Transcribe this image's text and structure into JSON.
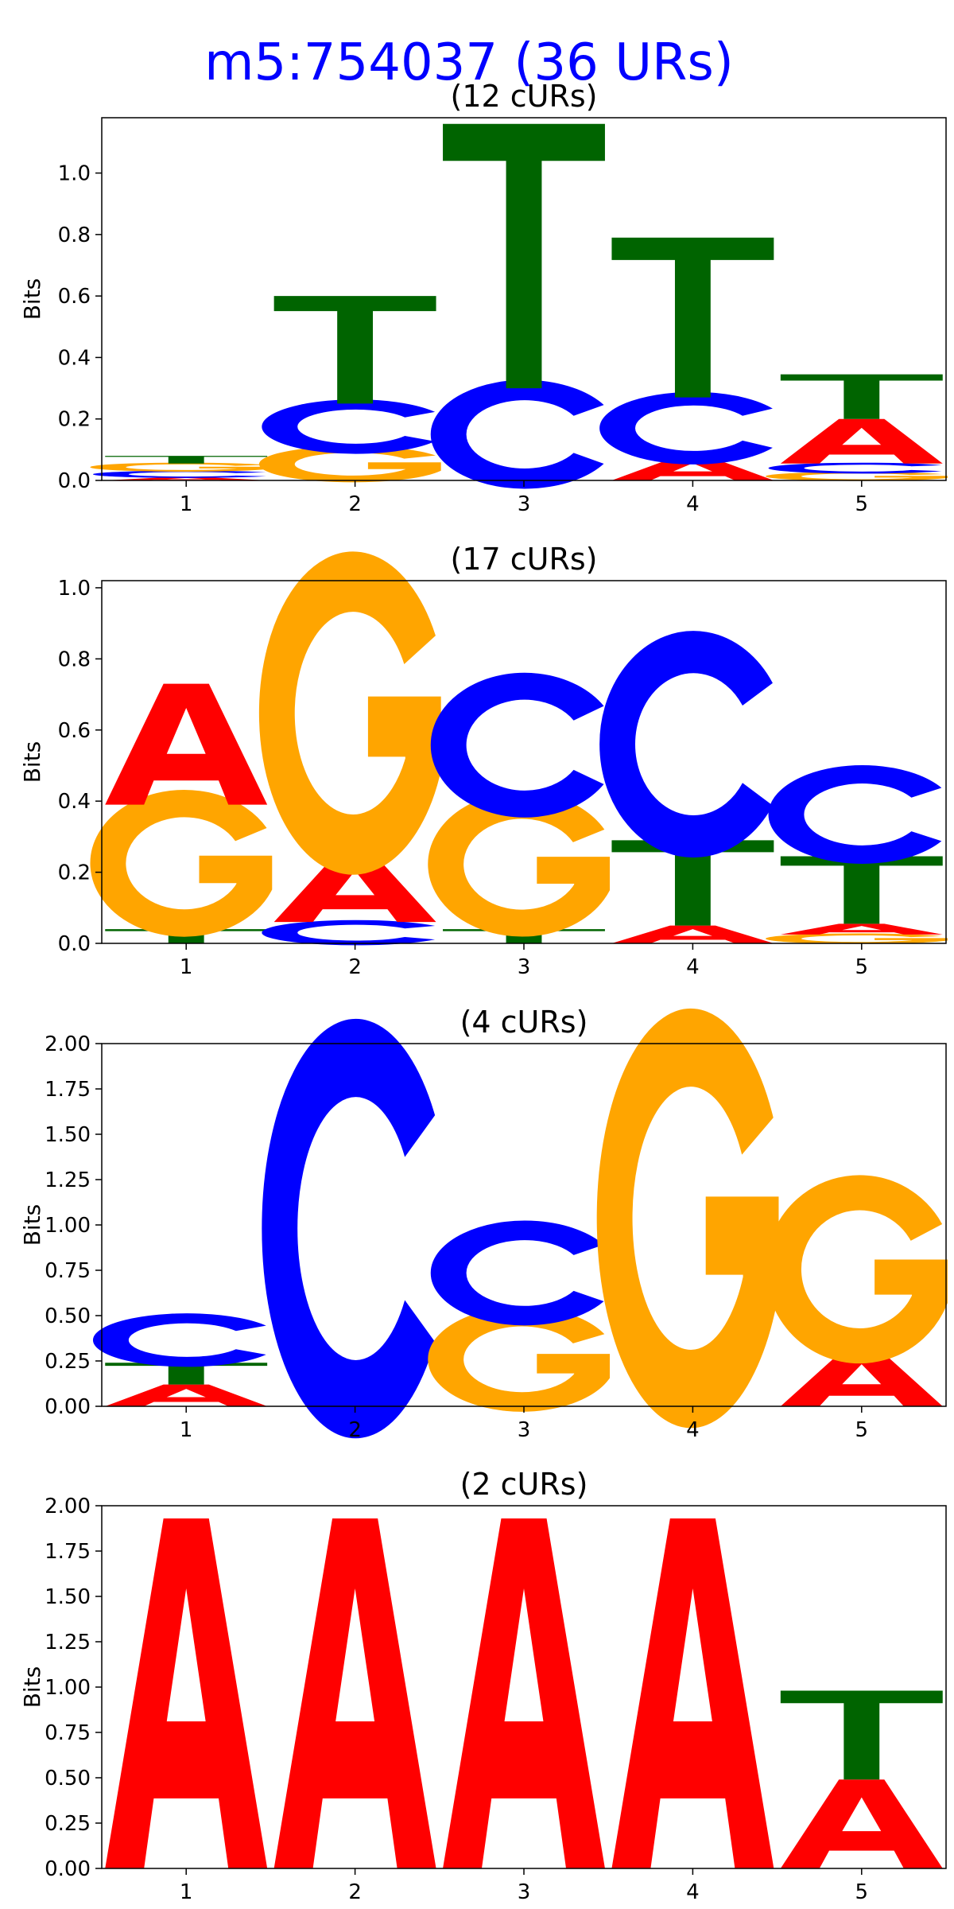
{
  "figure": {
    "title": "m5:754037 (36 URs)",
    "title_color": "#0000ff"
  },
  "letter_colors": {
    "A": "#ff0000",
    "C": "#0000ff",
    "G": "#ffa500",
    "T": "#006400"
  },
  "chart_data": [
    {
      "type": "sequence_logo",
      "title": "(12 cURs)",
      "ylabel": "Bits",
      "ylim": [
        0,
        1.18
      ],
      "yticks": [
        0.0,
        0.2,
        0.4,
        0.6,
        0.8,
        1.0
      ],
      "ytick_labels": [
        "0.0",
        "0.2",
        "0.4",
        "0.6",
        "0.8",
        "1.0"
      ],
      "positions": [
        1,
        2,
        3,
        4,
        5
      ],
      "stacks": [
        [
          {
            "letter": "A",
            "height": 0.01
          },
          {
            "letter": "C",
            "height": 0.02
          },
          {
            "letter": "G",
            "height": 0.025
          },
          {
            "letter": "T",
            "height": 0.025
          }
        ],
        [
          {
            "letter": "A",
            "height": 0.0
          },
          {
            "letter": "G",
            "height": 0.1
          },
          {
            "letter": "C",
            "height": 0.15
          },
          {
            "letter": "T",
            "height": 0.35
          }
        ],
        [
          {
            "letter": "A",
            "height": 0.0
          },
          {
            "letter": "G",
            "height": 0.0
          },
          {
            "letter": "C",
            "height": 0.3
          },
          {
            "letter": "T",
            "height": 0.86
          }
        ],
        [
          {
            "letter": "G",
            "height": 0.0
          },
          {
            "letter": "A",
            "height": 0.07
          },
          {
            "letter": "C",
            "height": 0.2
          },
          {
            "letter": "T",
            "height": 0.52
          }
        ],
        [
          {
            "letter": "G",
            "height": 0.025
          },
          {
            "letter": "C",
            "height": 0.03
          },
          {
            "letter": "A",
            "height": 0.145
          },
          {
            "letter": "T",
            "height": 0.145
          }
        ]
      ]
    },
    {
      "type": "sequence_logo",
      "title": "(17 cURs)",
      "ylabel": "Bits",
      "ylim": [
        0,
        1.02
      ],
      "yticks": [
        0.0,
        0.2,
        0.4,
        0.6,
        0.8,
        1.0
      ],
      "ytick_labels": [
        "0.0",
        "0.2",
        "0.4",
        "0.6",
        "0.8",
        "1.0"
      ],
      "positions": [
        1,
        2,
        3,
        4,
        5
      ],
      "stacks": [
        [
          {
            "letter": "C",
            "height": 0.0
          },
          {
            "letter": "T",
            "height": 0.04
          },
          {
            "letter": "G",
            "height": 0.35
          },
          {
            "letter": "A",
            "height": 0.34
          }
        ],
        [
          {
            "letter": "T",
            "height": 0.0
          },
          {
            "letter": "C",
            "height": 0.06
          },
          {
            "letter": "A",
            "height": 0.18
          },
          {
            "letter": "G",
            "height": 0.77
          }
        ],
        [
          {
            "letter": "A",
            "height": 0.0
          },
          {
            "letter": "T",
            "height": 0.04
          },
          {
            "letter": "G",
            "height": 0.345
          },
          {
            "letter": "C",
            "height": 0.345
          }
        ],
        [
          {
            "letter": "G",
            "height": 0.0
          },
          {
            "letter": "A",
            "height": 0.05
          },
          {
            "letter": "T",
            "height": 0.24
          },
          {
            "letter": "C",
            "height": 0.54
          }
        ],
        [
          {
            "letter": "G",
            "height": 0.025
          },
          {
            "letter": "A",
            "height": 0.03
          },
          {
            "letter": "T",
            "height": 0.19
          },
          {
            "letter": "C",
            "height": 0.235
          }
        ]
      ]
    },
    {
      "type": "sequence_logo",
      "title": "(4 cURs)",
      "ylabel": "Bits",
      "ylim": [
        0,
        2.0
      ],
      "yticks": [
        0.0,
        0.25,
        0.5,
        0.75,
        1.0,
        1.25,
        1.5,
        1.75,
        2.0
      ],
      "ytick_labels": [
        "0.00",
        "0.25",
        "0.50",
        "0.75",
        "1.00",
        "1.25",
        "1.50",
        "1.75",
        "2.00"
      ],
      "positions": [
        1,
        2,
        3,
        4,
        5
      ],
      "stacks": [
        [
          {
            "letter": "G",
            "height": 0.0
          },
          {
            "letter": "A",
            "height": 0.12
          },
          {
            "letter": "T",
            "height": 0.12
          },
          {
            "letter": "C",
            "height": 0.25
          }
        ],
        [
          {
            "letter": "A",
            "height": 0.0
          },
          {
            "letter": "G",
            "height": 0.0
          },
          {
            "letter": "T",
            "height": 0.0
          },
          {
            "letter": "C",
            "height": 1.96
          }
        ],
        [
          {
            "letter": "A",
            "height": 0.0
          },
          {
            "letter": "T",
            "height": 0.0
          },
          {
            "letter": "G",
            "height": 0.49
          },
          {
            "letter": "C",
            "height": 0.49
          }
        ],
        [
          {
            "letter": "A",
            "height": 0.0
          },
          {
            "letter": "C",
            "height": 0.0
          },
          {
            "letter": "T",
            "height": 0.0
          },
          {
            "letter": "G",
            "height": 1.96
          }
        ],
        [
          {
            "letter": "C",
            "height": 0.0
          },
          {
            "letter": "T",
            "height": 0.0
          },
          {
            "letter": "A",
            "height": 0.29
          },
          {
            "letter": "G",
            "height": 0.88
          }
        ]
      ]
    },
    {
      "type": "sequence_logo",
      "title": "(2 cURs)",
      "ylabel": "Bits",
      "ylim": [
        0,
        2.0
      ],
      "yticks": [
        0.0,
        0.25,
        0.5,
        0.75,
        1.0,
        1.25,
        1.5,
        1.75,
        2.0
      ],
      "ytick_labels": [
        "0.00",
        "0.25",
        "0.50",
        "0.75",
        "1.00",
        "1.25",
        "1.50",
        "1.75",
        "2.00"
      ],
      "positions": [
        1,
        2,
        3,
        4,
        5
      ],
      "stacks": [
        [
          {
            "letter": "C",
            "height": 0.0
          },
          {
            "letter": "G",
            "height": 0.0
          },
          {
            "letter": "T",
            "height": 0.0
          },
          {
            "letter": "A",
            "height": 1.93
          }
        ],
        [
          {
            "letter": "C",
            "height": 0.0
          },
          {
            "letter": "G",
            "height": 0.0
          },
          {
            "letter": "T",
            "height": 0.0
          },
          {
            "letter": "A",
            "height": 1.93
          }
        ],
        [
          {
            "letter": "C",
            "height": 0.0
          },
          {
            "letter": "G",
            "height": 0.0
          },
          {
            "letter": "T",
            "height": 0.0
          },
          {
            "letter": "A",
            "height": 1.93
          }
        ],
        [
          {
            "letter": "C",
            "height": 0.0
          },
          {
            "letter": "G",
            "height": 0.0
          },
          {
            "letter": "T",
            "height": 0.0
          },
          {
            "letter": "A",
            "height": 1.93
          }
        ],
        [
          {
            "letter": "C",
            "height": 0.0
          },
          {
            "letter": "G",
            "height": 0.0
          },
          {
            "letter": "A",
            "height": 0.49
          },
          {
            "letter": "T",
            "height": 0.49
          }
        ]
      ]
    }
  ]
}
